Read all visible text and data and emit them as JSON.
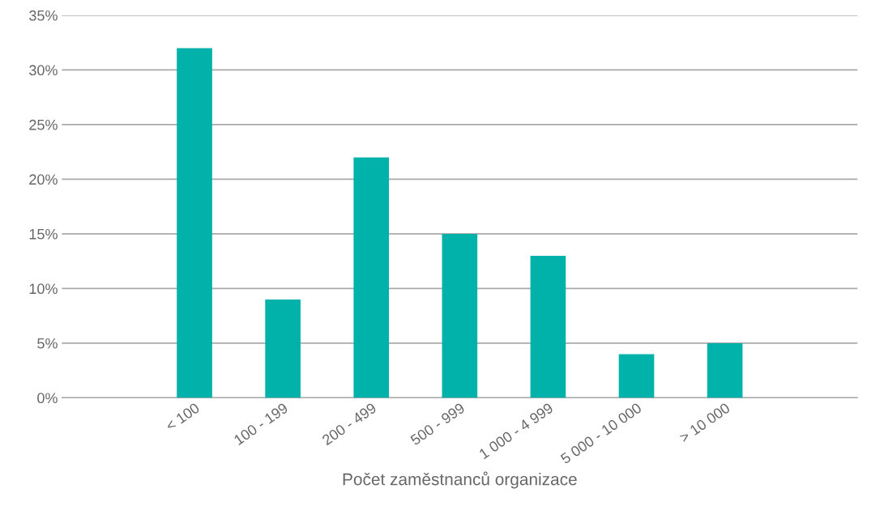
{
  "chart_data": {
    "type": "bar",
    "xlabel": "Počet zaměstnanců organizace",
    "categories": [
      "< 100",
      "100 - 199",
      "200 - 499",
      "500 - 999",
      "1 000 - 4 999",
      "5 000 - 10 000",
      "> 10 000"
    ],
    "values": [
      32,
      9,
      22,
      15,
      13,
      4,
      5
    ],
    "color": "#00b2a9",
    "ylim": [
      0,
      35
    ],
    "yticks": [
      {
        "value": 0,
        "label": "0%"
      },
      {
        "value": 5,
        "label": "5%"
      },
      {
        "value": 10,
        "label": "10%"
      },
      {
        "value": 15,
        "label": "15%"
      },
      {
        "value": 20,
        "label": "20%"
      },
      {
        "value": 25,
        "label": "25%"
      },
      {
        "value": 30,
        "label": "30%"
      },
      {
        "value": 35,
        "label": "35%"
      }
    ],
    "grid": "y"
  }
}
